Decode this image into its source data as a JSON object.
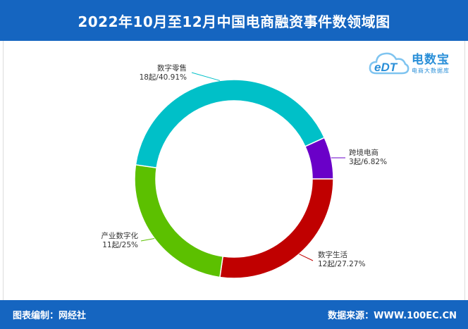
{
  "title": "2022年10月至12月中国电商融资事件数领域图",
  "footer": {
    "left": "图表编制：网经社",
    "right": "数据来源：WWW.100EC.CN"
  },
  "logo": {
    "brand": "电数宝",
    "slogan": "电商大数据库",
    "mark": "eDT",
    "mark_icon": "cloud-icon"
  },
  "colors": {
    "header_bg": "#1565c0",
    "series": [
      "#00c0c8",
      "#6a00c8",
      "#c00000",
      "#5cc000"
    ]
  },
  "chart_data": {
    "type": "pie",
    "style": "donut",
    "title": "2022年10月至12月中国电商融资事件数领域图",
    "slices": [
      {
        "name": "数字零售",
        "value": 18,
        "percent": 40.91,
        "value_label": "18起/40.91%",
        "color": "#00c0c8"
      },
      {
        "name": "跨境电商",
        "value": 3,
        "percent": 6.82,
        "value_label": "3起/6.82%",
        "color": "#6a00c8"
      },
      {
        "name": "数字生活",
        "value": 12,
        "percent": 27.27,
        "value_label": "12起/27.27%",
        "color": "#c00000"
      },
      {
        "name": "产业数字化",
        "value": 11,
        "percent": 25,
        "value_label": "11起/25%",
        "color": "#5cc000"
      }
    ]
  }
}
